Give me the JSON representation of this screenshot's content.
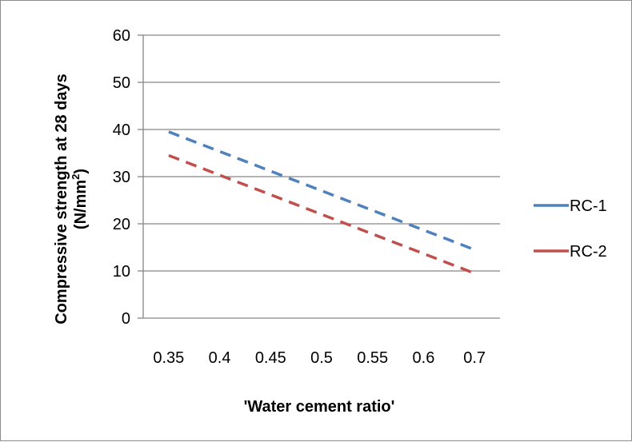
{
  "chart_data": {
    "type": "line",
    "title": "",
    "xlabel": "'Water cement  ratio'",
    "ylabel_line1": "Compressive strength at 28 days",
    "ylabel_line2_prefix": "(N/mm",
    "ylabel_line2_sup": "2",
    "ylabel_line2_suffix": ")",
    "categories": [
      "0.35",
      "0.4",
      "0.45",
      "0.5",
      "0.55",
      "0.6",
      "0.7"
    ],
    "ylim": [
      0,
      60
    ],
    "yticks": [
      0,
      10,
      20,
      30,
      40,
      50,
      60
    ],
    "grid": true,
    "legend_position": "right",
    "series": [
      {
        "name": "RC-1",
        "color": "#4f81bd",
        "dash": "dashed",
        "points": [
          [
            0.35,
            39.5
          ],
          [
            0.7,
            14.5
          ]
        ]
      },
      {
        "name": "RC-2",
        "color": "#c0504d",
        "dash": "dashed",
        "points": [
          [
            0.35,
            34.5
          ],
          [
            0.7,
            9.5
          ]
        ]
      }
    ]
  }
}
